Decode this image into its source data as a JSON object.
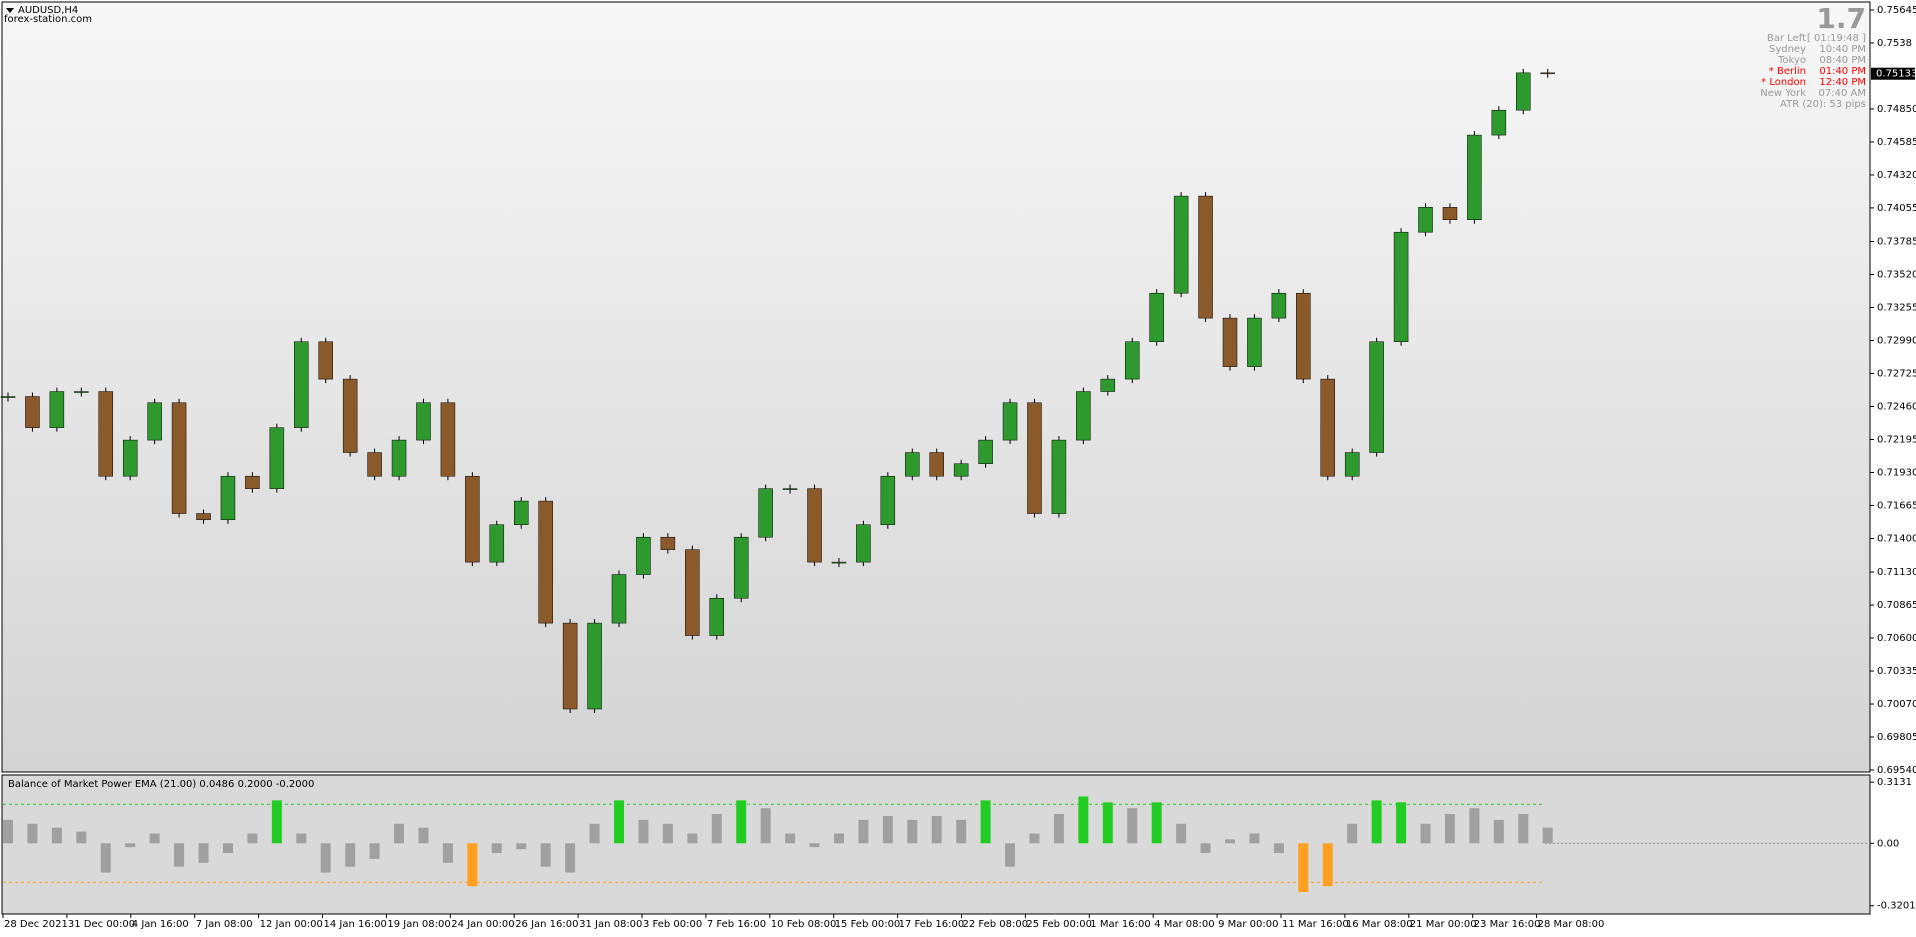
{
  "header": {
    "symbol": "AUDUSD,H4",
    "site": "forex-station.com"
  },
  "info": {
    "big": "1.7",
    "rows": [
      {
        "label": "Bar Left",
        "value": "[ 01:19:48 ]"
      },
      {
        "label": "Sydney",
        "value": "10:40 PM"
      },
      {
        "label": "Tokyo",
        "value": "08:40 PM"
      },
      {
        "label": "* Berlin",
        "value": "01:40 PM",
        "color": "#ff0000"
      },
      {
        "label": "* London",
        "value": "12:40 PM",
        "color": "#ff0000"
      },
      {
        "label": "New York",
        "value": "07:40 AM"
      }
    ],
    "atr": "ATR (20): 53 pips"
  },
  "time_labels": [
    "28 Dec 2021",
    "31 Dec 00:00",
    "4 Jan 16:00",
    "7 Jan 08:00",
    "12 Jan 00:00",
    "14 Jan 16:00",
    "19 Jan 08:00",
    "24 Jan 00:00",
    "26 Jan 16:00",
    "31 Jan 08:00",
    "3 Feb 00:00",
    "7 Feb 16:00",
    "10 Feb 08:00",
    "15 Feb 00:00",
    "17 Feb 16:00",
    "22 Feb 08:00",
    "25 Feb 00:00",
    "1 Mar 16:00",
    "4 Mar 08:00",
    "9 Mar 00:00",
    "11 Mar 16:00",
    "16 Mar 08:00",
    "21 Mar 00:00",
    "23 Mar 16:00",
    "28 Mar 08:00"
  ],
  "chart_data": [
    {
      "type": "candlestick",
      "up_color": "#2e9a2e",
      "down_color": "#8b5a2b",
      "closes": [
        0.7254,
        0.7229,
        0.7258,
        0.7258,
        0.719,
        0.7219,
        0.7249,
        0.716,
        0.7155,
        0.719,
        0.718,
        0.7229,
        0.7298,
        0.7268,
        0.7209,
        0.719,
        0.7219,
        0.7249,
        0.719,
        0.7121,
        0.7151,
        0.717,
        0.7072,
        0.7003,
        0.7072,
        0.7111,
        0.7141,
        0.7131,
        0.7062,
        0.7092,
        0.7141,
        0.718,
        0.718,
        0.7121,
        0.7121,
        0.7151,
        0.719,
        0.7209,
        0.719,
        0.72,
        0.7219,
        0.7249,
        0.716,
        0.7219,
        0.7258,
        0.7268,
        0.7298,
        0.7337,
        0.7415,
        0.7317,
        0.7278,
        0.7317,
        0.7337,
        0.7268,
        0.719,
        0.7209,
        0.7298,
        0.7386,
        0.7406,
        0.7396,
        0.7464,
        0.7484,
        0.7514,
        0.75133
      ],
      "current_price": 0.75133,
      "ylim": [
        0.69524,
        0.75701
      ],
      "yticks": [
        0.75645,
        0.7538,
        {
          "value": 0.7485,
          "label": "0.74850"
        },
        0.74585,
        {
          "value": 0.7432,
          "label": "0.74320"
        },
        0.74055,
        0.73785,
        {
          "value": 0.7352,
          "label": "0.73520"
        },
        0.73255,
        {
          "value": 0.7299,
          "label": "0.72990"
        },
        0.72725,
        {
          "value": 0.7246,
          "label": "0.72460"
        },
        0.72195,
        {
          "value": 0.7193,
          "label": "0.71930"
        },
        0.71665,
        {
          "value": 0.714,
          "label": "0.71400"
        },
        {
          "value": 0.7113,
          "label": "0.71130"
        },
        0.70865,
        {
          "value": 0.706,
          "label": "0.70600"
        },
        0.70335,
        {
          "value": 0.7007,
          "label": "0.70070"
        },
        0.69805,
        {
          "value": 0.6954,
          "label": "0.69540"
        }
      ]
    },
    {
      "type": "bar",
      "title": "Balance of Market Power EMA (21.00) 0.0486 0.2000 -0.2000",
      "values": [
        0.12,
        0.1,
        0.08,
        0.06,
        -0.15,
        -0.02,
        0.05,
        -0.12,
        -0.1,
        -0.05,
        0.05,
        0.22,
        0.05,
        -0.15,
        -0.12,
        -0.08,
        0.1,
        0.08,
        -0.1,
        -0.22,
        -0.05,
        -0.03,
        -0.12,
        -0.15,
        0.1,
        0.22,
        0.12,
        0.1,
        0.05,
        0.15,
        0.22,
        0.18,
        0.05,
        -0.02,
        0.05,
        0.12,
        0.14,
        0.12,
        0.14,
        0.12,
        0.22,
        -0.12,
        0.05,
        0.15,
        0.24,
        0.21,
        0.18,
        0.21,
        0.1,
        -0.05,
        0.02,
        0.05,
        -0.05,
        -0.25,
        -0.22,
        0.1,
        0.22,
        0.21,
        0.1,
        0.15,
        0.18,
        0.12,
        0.15,
        0.08
      ],
      "levels": [
        0.2,
        -0.2
      ],
      "color": "#a0a0a0",
      "above_color": "#22cc22",
      "below_color": "#ffa020",
      "ylim": [
        -0.3625,
        0.35
      ],
      "yticks": [
        0.3131,
        {
          "value": 0,
          "label": "0.00"
        },
        -0.3201
      ]
    }
  ]
}
